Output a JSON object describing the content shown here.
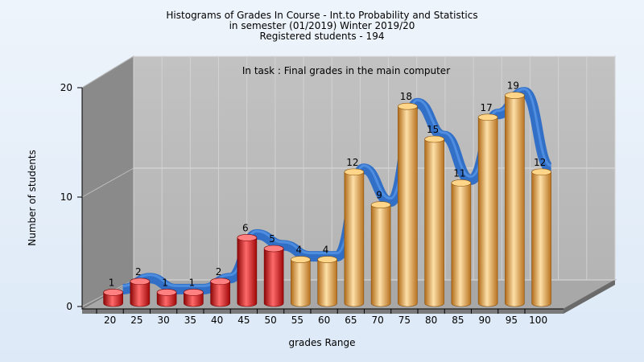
{
  "title_lines": [
    "Histograms of Grades  In Course - Int.to Probability and Statistics",
    "in semester  (01/2019) Winter 2019/20",
    "Registered students - 194"
  ],
  "chart_data": {
    "type": "bar",
    "subtitle": "In task : Final grades in the main computer",
    "xlabel": "grades Range",
    "ylabel": "Number of students",
    "ylim": [
      0,
      20
    ],
    "yticks": [
      0,
      10,
      20
    ],
    "categories": [
      "20",
      "25",
      "30",
      "35",
      "40",
      "45",
      "50",
      "55",
      "60",
      "65",
      "70",
      "75",
      "80",
      "85",
      "90",
      "95",
      "100"
    ],
    "values": [
      1,
      2,
      1,
      1,
      2,
      6,
      5,
      4,
      4,
      12,
      9,
      18,
      15,
      11,
      17,
      19,
      12
    ],
    "fail_count": 7,
    "fail_color": "#e01818",
    "pass_color": "#e8a040",
    "trend_color": "#2a6cc8",
    "legend": "none",
    "grid": true
  }
}
